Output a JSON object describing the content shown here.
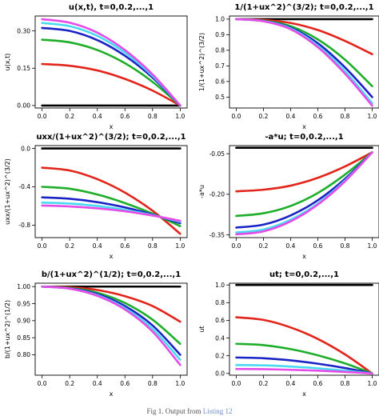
{
  "figure": {
    "caption_prefix": "Fig 1.",
    "caption_text": "Output from",
    "caption_link": "Listing 12"
  },
  "chart_data": [
    {
      "type": "line",
      "title": "u(x,t), t=0,0.2,...,1",
      "xlabel": "x",
      "ylabel": "u(x,t)",
      "xlim": [
        -0.05,
        1.05
      ],
      "ylim": [
        -0.01,
        0.36
      ],
      "xticks": [
        0.0,
        0.2,
        0.4,
        0.6,
        0.8,
        1.0
      ],
      "xtick_labels": [
        "0.0",
        "0.2",
        "0.4",
        "0.6",
        "0.8",
        "1.0"
      ],
      "yticks": [
        0.0,
        0.15,
        0.3
      ],
      "ytick_labels": [
        "0.00",
        "0.15",
        "0.30"
      ],
      "grid": false,
      "series": [
        {
          "t": 0.0,
          "color": "#000000",
          "x": [
            0,
            1
          ],
          "y": [
            0.0,
            0.0
          ]
        },
        {
          "t": 0.2,
          "color": "#e3241b",
          "x": [
            0,
            0.2,
            0.4,
            0.6,
            0.8,
            1.0
          ],
          "y": [
            0.167,
            0.16,
            0.141,
            0.107,
            0.06,
            0.0
          ]
        },
        {
          "t": 0.4,
          "color": "#1fae2a",
          "x": [
            0,
            0.2,
            0.4,
            0.6,
            0.8,
            1.0
          ],
          "y": [
            0.265,
            0.254,
            0.223,
            0.17,
            0.095,
            0.0
          ]
        },
        {
          "t": 0.6,
          "color": "#1b23c4",
          "x": [
            0,
            0.2,
            0.4,
            0.6,
            0.8,
            1.0
          ],
          "y": [
            0.312,
            0.3,
            0.263,
            0.2,
            0.112,
            0.0
          ]
        },
        {
          "t": 0.8,
          "color": "#49d9f2",
          "x": [
            0,
            0.2,
            0.4,
            0.6,
            0.8,
            1.0
          ],
          "y": [
            0.332,
            0.319,
            0.28,
            0.213,
            0.119,
            0.0
          ]
        },
        {
          "t": 1.0,
          "color": "#e54be6",
          "x": [
            0,
            0.2,
            0.4,
            0.6,
            0.8,
            1.0
          ],
          "y": [
            0.347,
            0.333,
            0.293,
            0.223,
            0.125,
            0.0
          ]
        }
      ]
    },
    {
      "type": "line",
      "title": "1/(1+ux^2)^(3/2); t=0,0.2,...,1",
      "xlabel": "x",
      "ylabel": "1/(1+ux^2)^(3/2)",
      "xlim": [
        -0.05,
        1.05
      ],
      "ylim": [
        0.43,
        1.02
      ],
      "xticks": [
        0.0,
        0.2,
        0.4,
        0.6,
        0.8,
        1.0
      ],
      "xtick_labels": [
        "0.0",
        "0.2",
        "0.4",
        "0.6",
        "0.8",
        "1.0"
      ],
      "yticks": [
        0.5,
        0.6,
        0.7,
        0.8,
        0.9,
        1.0
      ],
      "ytick_labels": [
        "0.5",
        "0.6",
        "0.7",
        "0.8",
        "0.9",
        "1.0"
      ],
      "grid": false,
      "series": [
        {
          "t": 0.0,
          "color": "#000000",
          "x": [
            0,
            1
          ],
          "y": [
            1.0,
            1.0
          ]
        },
        {
          "t": 0.2,
          "color": "#e3241b",
          "x": [
            0,
            0.2,
            0.4,
            0.6,
            0.8,
            1.0
          ],
          "y": [
            1.0,
            0.995,
            0.975,
            0.93,
            0.86,
            0.775
          ]
        },
        {
          "t": 0.4,
          "color": "#1fae2a",
          "x": [
            0,
            0.2,
            0.4,
            0.6,
            0.8,
            1.0
          ],
          "y": [
            1.0,
            0.99,
            0.955,
            0.87,
            0.74,
            0.57
          ]
        },
        {
          "t": 0.6,
          "color": "#1b23c4",
          "x": [
            0,
            0.2,
            0.4,
            0.6,
            0.8,
            1.0
          ],
          "y": [
            1.0,
            0.988,
            0.945,
            0.845,
            0.69,
            0.5
          ]
        },
        {
          "t": 0.8,
          "color": "#49d9f2",
          "x": [
            0,
            0.2,
            0.4,
            0.6,
            0.8,
            1.0
          ],
          "y": [
            1.0,
            0.987,
            0.94,
            0.83,
            0.665,
            0.46
          ]
        },
        {
          "t": 1.0,
          "color": "#e54be6",
          "x": [
            0,
            0.2,
            0.4,
            0.6,
            0.8,
            1.0
          ],
          "y": [
            1.0,
            0.986,
            0.935,
            0.82,
            0.65,
            0.445
          ]
        }
      ]
    },
    {
      "type": "line",
      "title": "uxx/(1+ux^2)^(3/2); t=0,0.2,...,1",
      "xlabel": "x",
      "ylabel": "uxx/(1+ux^2)^(3/2)",
      "xlim": [
        -0.05,
        1.05
      ],
      "ylim": [
        -0.93,
        0.03
      ],
      "xticks": [
        0.0,
        0.2,
        0.4,
        0.6,
        0.8,
        1.0
      ],
      "xtick_labels": [
        "0.0",
        "0.2",
        "0.4",
        "0.6",
        "0.8",
        "1.0"
      ],
      "yticks": [
        0.0,
        -0.4,
        -0.8
      ],
      "ytick_labels": [
        "0.0",
        "-0.4",
        "-0.8"
      ],
      "grid": false,
      "series": [
        {
          "t": 0.0,
          "color": "#000000",
          "x": [
            0,
            1
          ],
          "y": [
            0.0,
            0.0
          ]
        },
        {
          "t": 0.2,
          "color": "#e3241b",
          "x": [
            0,
            0.2,
            0.4,
            0.6,
            0.8,
            1.0
          ],
          "y": [
            -0.2,
            -0.23,
            -0.32,
            -0.46,
            -0.65,
            -0.89
          ]
        },
        {
          "t": 0.4,
          "color": "#1fae2a",
          "x": [
            0,
            0.2,
            0.4,
            0.6,
            0.8,
            1.0
          ],
          "y": [
            -0.4,
            -0.42,
            -0.48,
            -0.57,
            -0.68,
            -0.81
          ]
        },
        {
          "t": 0.6,
          "color": "#1b23c4",
          "x": [
            0,
            0.2,
            0.4,
            0.6,
            0.8,
            1.0
          ],
          "y": [
            -0.51,
            -0.525,
            -0.56,
            -0.615,
            -0.69,
            -0.78
          ]
        },
        {
          "t": 0.8,
          "color": "#49d9f2",
          "x": [
            0,
            0.2,
            0.4,
            0.6,
            0.8,
            1.0
          ],
          "y": [
            -0.565,
            -0.575,
            -0.6,
            -0.64,
            -0.695,
            -0.765
          ]
        },
        {
          "t": 1.0,
          "color": "#e54be6",
          "x": [
            0,
            0.2,
            0.4,
            0.6,
            0.8,
            1.0
          ],
          "y": [
            -0.595,
            -0.605,
            -0.625,
            -0.655,
            -0.7,
            -0.755
          ]
        }
      ]
    },
    {
      "type": "line",
      "title": "-a*u; t=0,0.2,...,1",
      "xlabel": "x",
      "ylabel": "-a*u",
      "xlim": [
        -0.05,
        1.05
      ],
      "ylim": [
        -0.36,
        -0.02
      ],
      "xticks": [
        0.0,
        0.2,
        0.4,
        0.6,
        0.8,
        1.0
      ],
      "xtick_labels": [
        "0.0",
        "0.2",
        "0.4",
        "0.6",
        "0.8",
        "1.0"
      ],
      "yticks": [
        -0.05,
        -0.2,
        -0.35
      ],
      "ytick_labels": [
        "-0.05",
        "-0.20",
        "-0.35"
      ],
      "grid": false,
      "series": [
        {
          "t": 0.0,
          "color": "#000000",
          "x": [
            0,
            1
          ],
          "y": [
            -0.028,
            -0.028
          ]
        },
        {
          "t": 0.2,
          "color": "#e3241b",
          "x": [
            0,
            0.2,
            0.4,
            0.6,
            0.8,
            1.0
          ],
          "y": [
            -0.189,
            -0.183,
            -0.168,
            -0.139,
            -0.097,
            -0.045
          ]
        },
        {
          "t": 0.4,
          "color": "#1fae2a",
          "x": [
            0,
            0.2,
            0.4,
            0.6,
            0.8,
            1.0
          ],
          "y": [
            -0.28,
            -0.27,
            -0.243,
            -0.195,
            -0.127,
            -0.045
          ]
        },
        {
          "t": 0.6,
          "color": "#1b23c4",
          "x": [
            0,
            0.2,
            0.4,
            0.6,
            0.8,
            1.0
          ],
          "y": [
            -0.323,
            -0.312,
            -0.278,
            -0.222,
            -0.143,
            -0.045
          ]
        },
        {
          "t": 0.8,
          "color": "#49d9f2",
          "x": [
            0,
            0.2,
            0.4,
            0.6,
            0.8,
            1.0
          ],
          "y": [
            -0.341,
            -0.33,
            -0.294,
            -0.234,
            -0.149,
            -0.045
          ]
        },
        {
          "t": 1.0,
          "color": "#e54be6",
          "x": [
            0,
            0.2,
            0.4,
            0.6,
            0.8,
            1.0
          ],
          "y": [
            -0.348,
            -0.337,
            -0.3,
            -0.238,
            -0.152,
            -0.045
          ]
        }
      ]
    },
    {
      "type": "line",
      "title": "b/(1+ux^2)^(1/2); t=0,0.2,...,1",
      "xlabel": "x",
      "ylabel": "b/(1+ux^2)^(1/2)",
      "xlim": [
        -0.05,
        1.05
      ],
      "ylim": [
        0.74,
        1.01
      ],
      "xticks": [
        0.0,
        0.2,
        0.4,
        0.6,
        0.8,
        1.0
      ],
      "xtick_labels": [
        "0.0",
        "0.2",
        "0.4",
        "0.6",
        "0.8",
        "1.0"
      ],
      "yticks": [
        0.8,
        0.85,
        0.9,
        0.95,
        1.0
      ],
      "ytick_labels": [
        "0.80",
        "0.85",
        "0.90",
        "0.95",
        "1.00"
      ],
      "grid": false,
      "series": [
        {
          "t": 0.0,
          "color": "#000000",
          "x": [
            0,
            1
          ],
          "y": [
            1.0,
            1.0
          ]
        },
        {
          "t": 0.2,
          "color": "#e3241b",
          "x": [
            0,
            0.2,
            0.4,
            0.6,
            0.8,
            1.0
          ],
          "y": [
            1.0,
            0.998,
            0.99,
            0.972,
            0.943,
            0.897
          ]
        },
        {
          "t": 0.4,
          "color": "#1fae2a",
          "x": [
            0,
            0.2,
            0.4,
            0.6,
            0.8,
            1.0
          ],
          "y": [
            1.0,
            0.996,
            0.982,
            0.952,
            0.903,
            0.832
          ]
        },
        {
          "t": 0.6,
          "color": "#1b23c4",
          "x": [
            0,
            0.2,
            0.4,
            0.6,
            0.8,
            1.0
          ],
          "y": [
            1.0,
            0.995,
            0.978,
            0.943,
            0.886,
            0.8
          ]
        },
        {
          "t": 0.8,
          "color": "#49d9f2",
          "x": [
            0,
            0.2,
            0.4,
            0.6,
            0.8,
            1.0
          ],
          "y": [
            1.0,
            0.994,
            0.975,
            0.937,
            0.876,
            0.785
          ]
        },
        {
          "t": 1.0,
          "color": "#e54be6",
          "x": [
            0,
            0.2,
            0.4,
            0.6,
            0.8,
            1.0
          ],
          "y": [
            1.0,
            0.994,
            0.973,
            0.933,
            0.868,
            0.77
          ]
        }
      ]
    },
    {
      "type": "line",
      "title": "ut; t=0,0.2,...,1",
      "xlabel": "x",
      "ylabel": "ut",
      "xlim": [
        -0.05,
        1.05
      ],
      "ylim": [
        -0.02,
        1.02
      ],
      "xticks": [
        0.0,
        0.2,
        0.4,
        0.6,
        0.8,
        1.0
      ],
      "xtick_labels": [
        "0.0",
        "0.2",
        "0.4",
        "0.6",
        "0.8",
        "1.0"
      ],
      "yticks": [
        0.0,
        0.2,
        0.4,
        0.6,
        0.8,
        1.0
      ],
      "ytick_labels": [
        "0.0",
        "0.2",
        "0.4",
        "0.6",
        "0.8",
        "1.0"
      ],
      "grid": false,
      "series": [
        {
          "t": 0.0,
          "color": "#000000",
          "x": [
            0,
            1
          ],
          "y": [
            1.0,
            1.0
          ]
        },
        {
          "t": 0.2,
          "color": "#e3241b",
          "x": [
            0,
            0.2,
            0.4,
            0.6,
            0.8,
            1.0
          ],
          "y": [
            0.635,
            0.605,
            0.52,
            0.39,
            0.215,
            0.0
          ]
        },
        {
          "t": 0.4,
          "color": "#1fae2a",
          "x": [
            0,
            0.2,
            0.4,
            0.6,
            0.8,
            1.0
          ],
          "y": [
            0.335,
            0.32,
            0.275,
            0.205,
            0.113,
            0.0
          ]
        },
        {
          "t": 0.6,
          "color": "#1b23c4",
          "x": [
            0,
            0.2,
            0.4,
            0.6,
            0.8,
            1.0
          ],
          "y": [
            0.18,
            0.172,
            0.148,
            0.11,
            0.061,
            0.0
          ]
        },
        {
          "t": 0.8,
          "color": "#49d9f2",
          "x": [
            0,
            0.2,
            0.4,
            0.6,
            0.8,
            1.0
          ],
          "y": [
            0.095,
            0.091,
            0.078,
            0.058,
            0.032,
            0.0
          ]
        },
        {
          "t": 1.0,
          "color": "#e54be6",
          "x": [
            0,
            0.2,
            0.4,
            0.6,
            0.8,
            1.0
          ],
          "y": [
            0.05,
            0.048,
            0.041,
            0.031,
            0.017,
            0.0
          ]
        }
      ]
    }
  ]
}
